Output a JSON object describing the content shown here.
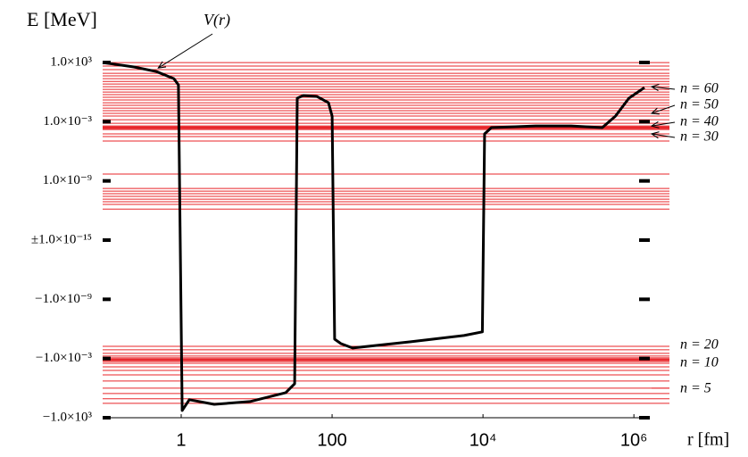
{
  "chart_data": {
    "type": "line",
    "ylabel": "E [MeV]",
    "xlabel": "r [fm]",
    "xscale": "log",
    "yscale": "signed-log",
    "xlim": [
      0.091,
      1380000
    ],
    "ylim": [
      -1000,
      1000
    ],
    "xticks": [
      1,
      100,
      {
        "value": 10000,
        "label": "10⁴"
      },
      {
        "value": 1000000,
        "label": "10⁶"
      }
    ],
    "yticks": [
      {
        "value": 1000,
        "label": "1.0×10³"
      },
      {
        "value": 0.001,
        "label": "1.0×10⁻³"
      },
      {
        "value": 1e-09,
        "label": "1.0×10⁻⁹"
      },
      {
        "value": 1e-15,
        "label": "±1.0×10⁻¹⁵"
      },
      {
        "value": -1e-09,
        "label": "−1.0×10⁻⁹"
      },
      {
        "value": -0.001,
        "label": "−1.0×10⁻³"
      },
      {
        "value": -1000,
        "label": "−1.0×10³"
      }
    ],
    "levels_color": "#e8262a",
    "levels": [
      980,
      430,
      190,
      81,
      44,
      23,
      12,
      6.6,
      3.5,
      1.9,
      1.0,
      0.55,
      0.3,
      0.16,
      0.083,
      0.045,
      0.024,
      0.013,
      0.0069,
      0.0037,
      0.0016,
      0.00069,
      0.00037,
      0.0003,
      0.00025,
      0.0002,
      0.00016,
      5.8e-05,
      3.1e-05,
      1.1e-05,
      4.9e-09,
      1.7e-10,
      9.3e-11,
      5e-11,
      2.7e-11,
      1.4e-11,
      7.8e-12,
      4.2e-12,
      1.4e-12,
      -5.8e-05,
      -0.00013,
      -0.0003,
      -0.00056,
      -0.00085,
      -0.0011,
      -0.0013,
      -0.0016,
      -0.002,
      -0.003,
      -0.0069,
      -0.016,
      -0.045,
      -0.19,
      -1.0,
      -3.5,
      -12,
      -35
    ],
    "annotations": [
      {
        "text": "n = 60",
        "y": 3.5,
        "arrow": true
      },
      {
        "text": "n = 50",
        "y": 0.0069,
        "arrow": true
      },
      {
        "text": "n = 40",
        "y": 0.00037,
        "arrow": true
      },
      {
        "text": "n = 30",
        "y": 5.8e-05,
        "arrow": true
      },
      {
        "text": "n = 20",
        "y": -5.8e-05,
        "arrow": false
      },
      {
        "text": "n = 10",
        "y": -0.003,
        "arrow": false
      },
      {
        "text": "n = 5",
        "y": -1.0,
        "arrow": false
      }
    ],
    "series": [
      {
        "name": "V(r)",
        "color": "#000000",
        "x": [
          0.091,
          0.236,
          0.47,
          0.8,
          0.92,
          1.03,
          1.28,
          2.74,
          8.15,
          24.3,
          31.9,
          34.5,
          41.7,
          62.8,
          89.5,
          100,
          108,
          131,
          187,
          1100,
          5600,
          9800,
          10500,
          12900,
          50000,
          147000,
          380000,
          570000,
          860000,
          1380000
        ],
        "values": [
          980,
          350,
          120,
          23,
          5.4,
          -186,
          -15,
          -44,
          -23,
          -2.9,
          -0.36,
          0.24,
          0.45,
          0.36,
          0.083,
          0.0037,
          -1.1e-05,
          -3.1e-05,
          -8.7e-05,
          -2e-05,
          -4.7e-06,
          -2e-06,
          5.8e-05,
          0.00025,
          0.00037,
          0.00037,
          0.00025,
          0.0037,
          0.24,
          2.9
        ]
      }
    ]
  }
}
